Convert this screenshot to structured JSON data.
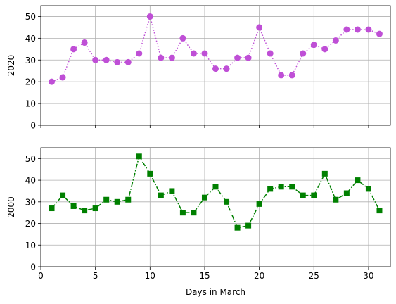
{
  "chart_data": [
    {
      "type": "line",
      "title": "",
      "xlabel": "",
      "ylabel": "2020",
      "xlim": [
        0,
        32
      ],
      "ylim": [
        0,
        55
      ],
      "xticks": [
        0,
        5,
        10,
        15,
        20,
        25,
        30
      ],
      "yticks": [
        0,
        10,
        20,
        30,
        40,
        50
      ],
      "x_tick_labels_visible": false,
      "grid": true,
      "color": "#bf4fd6",
      "line_style": "dotted",
      "marker": "circle",
      "x": [
        1,
        2,
        3,
        4,
        5,
        6,
        7,
        8,
        9,
        10,
        11,
        12,
        13,
        14,
        15,
        16,
        17,
        18,
        19,
        20,
        21,
        22,
        23,
        24,
        25,
        26,
        27,
        28,
        29,
        30,
        31
      ],
      "values": [
        20,
        22,
        35,
        38,
        30,
        30,
        29,
        29,
        33,
        50,
        31,
        31,
        40,
        33,
        33,
        26,
        26,
        31,
        31,
        45,
        33,
        23,
        23,
        33,
        37,
        35,
        39,
        44,
        44,
        44,
        42
      ]
    },
    {
      "type": "line",
      "title": "",
      "xlabel": "Days in March",
      "ylabel": "2000",
      "xlim": [
        0,
        32
      ],
      "ylim": [
        0,
        55
      ],
      "xticks": [
        0,
        5,
        10,
        15,
        20,
        25,
        30
      ],
      "yticks": [
        0,
        10,
        20,
        30,
        40,
        50
      ],
      "x_tick_labels_visible": true,
      "grid": true,
      "color": "#008000",
      "line_style": "dashdot",
      "marker": "square",
      "x": [
        1,
        2,
        3,
        4,
        5,
        6,
        7,
        8,
        9,
        10,
        11,
        12,
        13,
        14,
        15,
        16,
        17,
        18,
        19,
        20,
        21,
        22,
        23,
        24,
        25,
        26,
        27,
        28,
        29,
        30,
        31
      ],
      "values": [
        27,
        33,
        28,
        26,
        27,
        31,
        30,
        31,
        51,
        43,
        33,
        35,
        25,
        25,
        32,
        37,
        30,
        18,
        19,
        29,
        36,
        37,
        37,
        33,
        33,
        43,
        31,
        34,
        40,
        36,
        26
      ]
    }
  ]
}
